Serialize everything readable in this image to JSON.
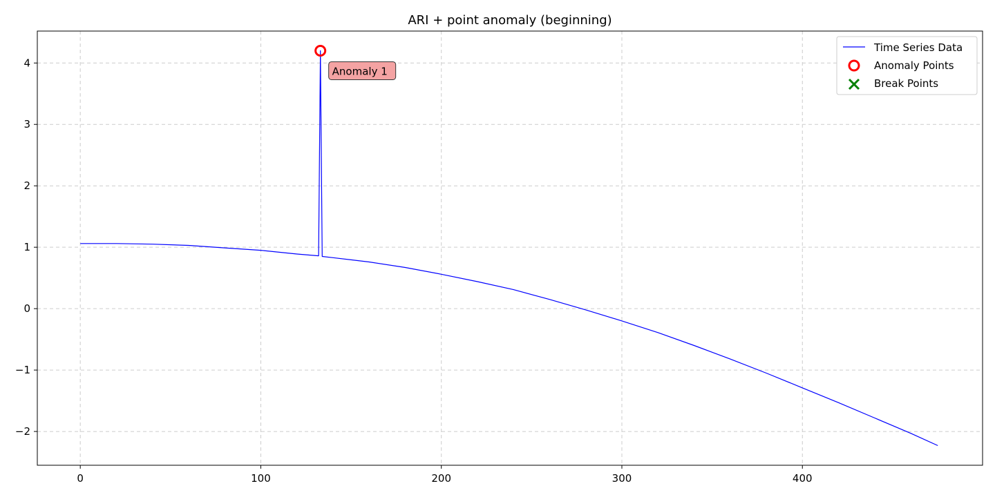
{
  "chart_data": {
    "type": "line",
    "title": "ARI + point anomaly (beginning)",
    "xlabel": "",
    "ylabel": "",
    "xlim": [
      -23.8,
      499.8
    ],
    "ylim": [
      -2.55,
      4.52
    ],
    "xticks": [
      0,
      100,
      200,
      300,
      400
    ],
    "yticks": [
      -2,
      -1,
      0,
      1,
      2,
      3,
      4
    ],
    "grid": true,
    "legend_position": "top-right",
    "legend": [
      "Time Series Data",
      "Anomaly Points",
      "Break Points"
    ],
    "series": [
      {
        "name": "Time Series Data",
        "color": "#0000ff",
        "x": [
          0,
          20,
          40,
          60,
          80,
          100,
          120,
          132,
          133,
          134,
          140,
          160,
          180,
          200,
          220,
          240,
          260,
          280,
          300,
          320,
          340,
          360,
          380,
          400,
          420,
          440,
          460,
          475
        ],
        "y": [
          1.06,
          1.06,
          1.05,
          1.03,
          0.99,
          0.95,
          0.89,
          0.86,
          4.2,
          0.85,
          0.83,
          0.76,
          0.67,
          0.56,
          0.44,
          0.31,
          0.15,
          -0.02,
          -0.2,
          -0.39,
          -0.6,
          -0.82,
          -1.05,
          -1.29,
          -1.53,
          -1.78,
          -2.03,
          -2.23
        ]
      }
    ],
    "anomaly_points": [
      {
        "x": 133,
        "y": 4.2,
        "label": "Anomaly 1"
      }
    ],
    "break_points": [],
    "colors": {
      "line": "#0000ff",
      "anomaly": "#ff0000",
      "break": "#008000",
      "annotation_fill": "#f4a3a3",
      "grid": "#cccccc"
    }
  }
}
